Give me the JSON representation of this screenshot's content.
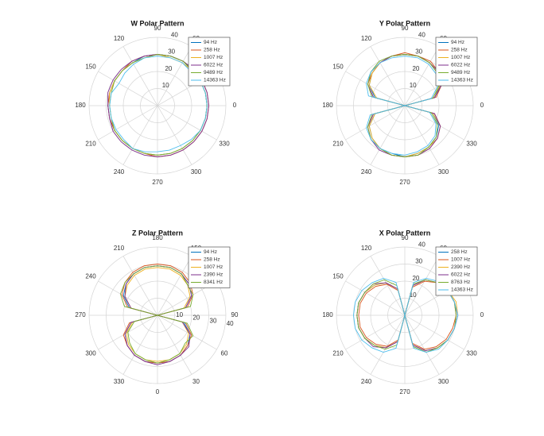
{
  "chart_data": [
    {
      "type": "polar",
      "title": "W Polar Pattern",
      "theta_zero_location": "E",
      "theta_direction": 1,
      "rlabel_position": 80,
      "rlim": [
        0,
        40
      ],
      "rticks": [
        10,
        20,
        30,
        40
      ],
      "thetaticks": [
        0,
        30,
        60,
        90,
        120,
        150,
        180,
        210,
        240,
        270,
        300,
        330
      ],
      "theta": [
        0,
        15,
        30,
        45,
        60,
        75,
        90,
        105,
        120,
        135,
        150,
        165,
        180,
        195,
        210,
        225,
        240,
        255,
        270,
        285,
        300,
        315,
        330,
        345
      ],
      "series": [
        {
          "name": "94 Hz",
          "color": "#0072BD",
          "values": [
            29,
            29,
            29,
            29,
            30,
            30,
            30,
            30,
            29,
            29,
            29,
            29,
            29,
            29,
            29,
            29,
            29,
            29,
            29,
            29,
            29,
            29,
            29,
            29
          ]
        },
        {
          "name": "258 Hz",
          "color": "#D95319",
          "values": [
            30,
            30,
            30,
            30,
            30,
            30,
            30,
            30,
            30,
            29,
            29,
            29,
            29,
            29,
            29,
            29,
            29,
            29,
            30,
            30,
            30,
            30,
            30,
            30
          ]
        },
        {
          "name": "1007 Hz",
          "color": "#EDB120",
          "values": [
            29,
            29,
            29,
            29,
            29,
            29,
            30,
            29,
            29,
            29,
            29,
            29,
            28,
            28,
            29,
            29,
            29,
            29,
            29,
            29,
            29,
            29,
            29,
            29
          ]
        },
        {
          "name": "6022 Hz",
          "color": "#7E2F8E",
          "values": [
            30,
            30,
            30,
            30,
            30,
            30,
            30,
            30,
            30,
            30,
            30,
            30,
            29,
            29,
            30,
            30,
            30,
            30,
            30,
            30,
            30,
            30,
            30,
            30
          ]
        },
        {
          "name": "9489 Hz",
          "color": "#77AC30",
          "values": [
            29,
            29,
            29,
            29,
            30,
            30,
            30,
            29,
            29,
            29,
            29,
            28,
            28,
            28,
            29,
            29,
            29,
            29,
            29,
            29,
            29,
            29,
            29,
            29
          ]
        },
        {
          "name": "14363 Hz",
          "color": "#4DBEEE",
          "values": [
            29,
            29,
            29,
            28,
            29,
            29,
            29,
            29,
            28,
            27,
            26,
            28,
            28,
            28,
            28,
            28,
            29,
            28,
            27,
            27,
            27,
            28,
            29,
            29
          ]
        }
      ]
    },
    {
      "type": "polar",
      "title": "Y Polar Pattern",
      "theta_zero_location": "E",
      "theta_direction": 1,
      "rlabel_position": 80,
      "rlim": [
        0,
        40
      ],
      "rticks": [
        10,
        20,
        30,
        40
      ],
      "thetaticks": [
        0,
        30,
        60,
        90,
        120,
        150,
        180,
        210,
        240,
        270,
        300,
        330
      ],
      "theta": [
        0,
        15,
        30,
        45,
        60,
        75,
        90,
        105,
        120,
        135,
        150,
        165,
        180,
        195,
        210,
        225,
        240,
        255,
        270,
        285,
        300,
        315,
        330,
        345
      ],
      "series": [
        {
          "name": "94 Hz",
          "color": "#0072BD",
          "values": [
            0,
            18,
            24,
            27,
            29,
            30,
            30,
            30,
            29,
            27,
            24,
            18,
            0,
            18,
            24,
            27,
            29,
            29,
            30,
            29,
            28,
            26,
            23,
            17
          ]
        },
        {
          "name": "258 Hz",
          "color": "#D95319",
          "values": [
            0,
            19,
            25,
            28,
            30,
            30,
            31,
            30,
            29,
            27,
            25,
            19,
            0,
            19,
            25,
            28,
            29,
            30,
            30,
            30,
            29,
            27,
            24,
            18
          ]
        },
        {
          "name": "1007 Hz",
          "color": "#EDB120",
          "values": [
            0,
            17,
            24,
            27,
            29,
            30,
            30,
            30,
            29,
            27,
            24,
            17,
            0,
            18,
            24,
            27,
            29,
            30,
            30,
            29,
            28,
            27,
            24,
            17
          ]
        },
        {
          "name": "6022 Hz",
          "color": "#7E2F8E",
          "values": [
            0,
            18,
            25,
            28,
            29,
            30,
            30,
            30,
            29,
            28,
            25,
            19,
            0,
            19,
            25,
            28,
            30,
            30,
            30,
            30,
            29,
            27,
            24,
            18
          ]
        },
        {
          "name": "9489 Hz",
          "color": "#77AC30",
          "values": [
            0,
            17,
            23,
            27,
            29,
            30,
            30,
            30,
            30,
            28,
            25,
            20,
            0,
            20,
            25,
            28,
            29,
            30,
            30,
            30,
            28,
            26,
            22,
            16
          ]
        },
        {
          "name": "14363 Hz",
          "color": "#4DBEEE",
          "values": [
            0,
            16,
            22,
            26,
            28,
            29,
            29,
            29,
            29,
            28,
            26,
            22,
            0,
            21,
            26,
            28,
            29,
            29,
            29,
            28,
            27,
            25,
            21,
            15
          ]
        }
      ]
    },
    {
      "type": "polar",
      "title": "Z Polar Pattern",
      "theta_zero_location": "S",
      "theta_direction": 1,
      "rlabel_position": 80,
      "rlim": [
        0,
        40
      ],
      "rticks": [
        10,
        20,
        30,
        40
      ],
      "thetaticks": [
        0,
        30,
        60,
        90,
        120,
        150,
        180,
        210,
        240,
        270,
        300,
        330
      ],
      "theta": [
        0,
        15,
        30,
        45,
        60,
        75,
        90,
        105,
        120,
        135,
        150,
        165,
        180,
        195,
        210,
        225,
        240,
        255,
        270,
        285,
        300,
        315,
        330,
        345
      ],
      "series": [
        {
          "name": "94 Hz",
          "color": "#0072BD",
          "values": [
            28,
            28,
            27,
            25,
            22,
            16,
            0,
            17,
            23,
            26,
            28,
            29,
            29,
            29,
            28,
            26,
            23,
            17,
            0,
            16,
            22,
            25,
            27,
            28
          ]
        },
        {
          "name": "258 Hz",
          "color": "#D95319",
          "values": [
            28,
            28,
            27,
            25,
            23,
            17,
            0,
            18,
            24,
            27,
            29,
            30,
            30,
            30,
            29,
            27,
            24,
            18,
            0,
            17,
            23,
            25,
            27,
            28
          ]
        },
        {
          "name": "1007 Hz",
          "color": "#EDB120",
          "values": [
            27,
            27,
            26,
            24,
            21,
            15,
            0,
            16,
            22,
            25,
            27,
            28,
            28,
            28,
            27,
            25,
            22,
            16,
            0,
            15,
            21,
            24,
            26,
            27
          ]
        },
        {
          "name": "2390 Hz",
          "color": "#7E2F8E",
          "values": [
            29,
            28,
            27,
            26,
            22,
            15,
            0,
            17,
            23,
            26,
            28,
            29,
            29,
            29,
            28,
            26,
            22,
            16,
            0,
            16,
            22,
            25,
            27,
            28
          ]
        },
        {
          "name": "8341 Hz",
          "color": "#77AC30",
          "values": [
            28,
            27,
            26,
            23,
            24,
            18,
            0,
            20,
            24,
            25,
            28,
            29,
            29,
            29,
            28,
            27,
            25,
            20,
            0,
            14,
            20,
            23,
            26,
            27
          ]
        }
      ]
    },
    {
      "type": "polar",
      "title": "X Polar Pattern",
      "theta_zero_location": "E",
      "theta_direction": 1,
      "rlabel_position": 80,
      "rlim": [
        0,
        40
      ],
      "rticks": [
        10,
        20,
        30,
        40
      ],
      "thetaticks": [
        0,
        30,
        60,
        90,
        120,
        150,
        180,
        210,
        240,
        270,
        300,
        330
      ],
      "theta": [
        0,
        15,
        30,
        45,
        60,
        75,
        90,
        105,
        120,
        135,
        150,
        165,
        180,
        195,
        210,
        225,
        240,
        255,
        270,
        285,
        300,
        315,
        330,
        345
      ],
      "series": [
        {
          "name": "258 Hz",
          "color": "#0072BD",
          "values": [
            31,
            30,
            29,
            27,
            24,
            18,
            0,
            16,
            22,
            25,
            27,
            28,
            28,
            28,
            27,
            25,
            22,
            16,
            0,
            18,
            24,
            27,
            29,
            30
          ]
        },
        {
          "name": "1007 Hz",
          "color": "#D95319",
          "values": [
            30,
            30,
            29,
            27,
            23,
            17,
            0,
            15,
            21,
            24,
            26,
            27,
            27,
            27,
            26,
            24,
            21,
            15,
            0,
            17,
            23,
            26,
            28,
            29
          ]
        },
        {
          "name": "2390 Hz",
          "color": "#EDB120",
          "values": [
            31,
            31,
            29,
            27,
            24,
            18,
            0,
            16,
            22,
            25,
            27,
            28,
            28,
            28,
            27,
            25,
            22,
            16,
            0,
            18,
            24,
            27,
            29,
            30
          ]
        },
        {
          "name": "6022 Hz",
          "color": "#7E2F8E",
          "values": [
            31,
            30,
            29,
            27,
            24,
            18,
            0,
            16,
            22,
            26,
            27,
            28,
            28,
            28,
            27,
            26,
            22,
            16,
            0,
            18,
            24,
            27,
            29,
            30
          ]
        },
        {
          "name": "8763 Hz",
          "color": "#77AC30",
          "values": [
            30,
            30,
            29,
            27,
            24,
            19,
            0,
            18,
            24,
            26,
            27,
            28,
            28,
            28,
            27,
            25,
            23,
            18,
            0,
            19,
            25,
            27,
            29,
            30
          ]
        },
        {
          "name": "14363 Hz",
          "color": "#4DBEEE",
          "values": [
            31,
            30,
            29,
            28,
            25,
            20,
            0,
            20,
            25,
            27,
            29,
            30,
            30,
            30,
            29,
            27,
            25,
            20,
            0,
            20,
            25,
            28,
            29,
            30
          ]
        }
      ]
    }
  ]
}
